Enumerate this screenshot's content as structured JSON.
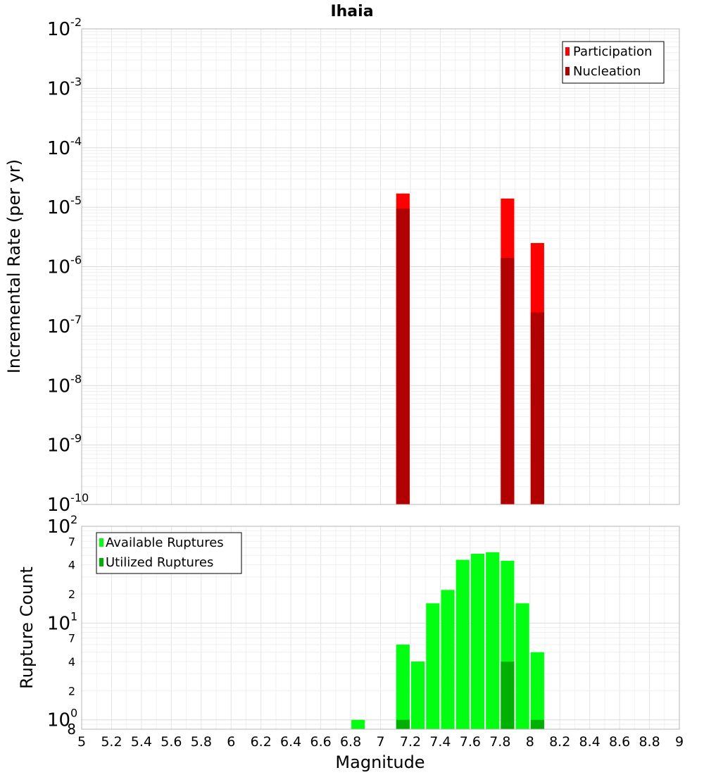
{
  "chart_data": [
    {
      "type": "bar",
      "title": "Ihaia",
      "xlabel": "",
      "ylabel": "Incremental Rate (per yr)",
      "y_scale": "log",
      "ylim": [
        1e-10,
        0.01
      ],
      "xlim": [
        5,
        9
      ],
      "y_tick_labels": [
        "10-10",
        "10-9",
        "10-8",
        "10-7",
        "10-6",
        "10-5",
        "10-4",
        "10-3",
        "10-2"
      ],
      "legend": {
        "position": "top-right",
        "entries": [
          "Participation",
          "Nucleation"
        ]
      },
      "grid": true,
      "bar_width": 0.09,
      "colors": {
        "Participation": "#ff0000",
        "Nucleation": "#b00000"
      },
      "x": [
        7.15,
        7.85,
        8.05
      ],
      "series": [
        {
          "name": "Participation",
          "values": [
            1.7e-05,
            1.4e-05,
            2.5e-06
          ]
        },
        {
          "name": "Nucleation",
          "values": [
            9.5e-06,
            1.4e-06,
            1.7e-07
          ]
        }
      ]
    },
    {
      "type": "bar",
      "title": "",
      "xlabel": "Magnitude",
      "ylabel": "Rupture Count",
      "y_scale": "log",
      "ylim": [
        0.8,
        100
      ],
      "xlim": [
        5,
        9
      ],
      "x_ticks": [
        "5",
        "5.2",
        "5.4",
        "5.6",
        "5.8",
        "6",
        "6.2",
        "6.4",
        "6.6",
        "6.8",
        "7",
        "7.2",
        "7.4",
        "7.6",
        "7.8",
        "8",
        "8.2",
        "8.4",
        "8.6",
        "8.8",
        "9"
      ],
      "y_major_tick_labels": [
        "100",
        "101",
        "102"
      ],
      "y_minor_tick_labels": [
        "2",
        "4",
        "7",
        "2",
        "4",
        "7",
        "8"
      ],
      "legend": {
        "position": "top-left",
        "entries": [
          "Available Ruptures",
          "Utilized Ruptures"
        ]
      },
      "grid": true,
      "bar_width": 0.09,
      "colors": {
        "Available Ruptures": "#00ff10",
        "Utilized Ruptures": "#00b000"
      },
      "x": [
        6.85,
        7.15,
        7.25,
        7.35,
        7.45,
        7.55,
        7.65,
        7.75,
        7.85,
        7.95,
        8.05
      ],
      "series": [
        {
          "name": "Available Ruptures",
          "values": [
            1,
            6,
            4,
            16,
            22,
            45,
            52,
            54,
            44,
            16,
            5
          ]
        },
        {
          "name": "Utilized Ruptures",
          "values": [
            0,
            1,
            0,
            0,
            0,
            0,
            0,
            0,
            4,
            0,
            1
          ]
        }
      ]
    }
  ]
}
